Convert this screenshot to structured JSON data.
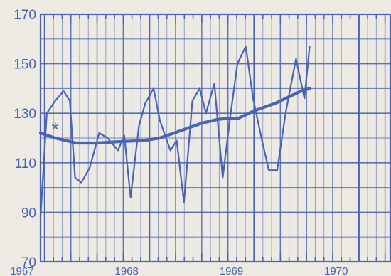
{
  "chart_data": {
    "type": "line",
    "title": "",
    "xlabel": "",
    "ylabel": "",
    "ylim": [
      70,
      170
    ],
    "yticks": [
      70,
      90,
      110,
      130,
      150,
      170
    ],
    "xlim": [
      1966.96,
      1970.3
    ],
    "xticks": [
      {
        "label": "1967",
        "x": 1967.0
      },
      {
        "label": "1968",
        "x": 1968.0
      },
      {
        "label": "1969",
        "x": 1969.0
      },
      {
        "label": "1970",
        "x": 1970.0
      }
    ],
    "grid": true,
    "color": "#4a63b3",
    "background": "#eceae3",
    "annotation": {
      "text": "*",
      "x": 1967.1,
      "y": 125
    },
    "series": [
      {
        "values": [
          [
            1966.96,
            88
          ],
          [
            1967.02,
            130
          ],
          [
            1967.1,
            135
          ],
          [
            1967.18,
            139
          ],
          [
            1967.24,
            135
          ],
          [
            1967.29,
            104
          ],
          [
            1967.35,
            102
          ],
          [
            1967.43,
            108
          ],
          [
            1967.52,
            122
          ],
          [
            1967.6,
            120
          ],
          [
            1967.7,
            115
          ],
          [
            1967.76,
            121
          ],
          [
            1967.82,
            96
          ],
          [
            1967.9,
            125
          ],
          [
            1967.96,
            134
          ],
          [
            1968.04,
            140
          ],
          [
            1968.1,
            127
          ],
          [
            1968.2,
            115
          ],
          [
            1968.26,
            119
          ],
          [
            1968.33,
            94
          ],
          [
            1968.41,
            135
          ],
          [
            1968.48,
            140
          ],
          [
            1968.54,
            130
          ],
          [
            1968.62,
            142
          ],
          [
            1968.7,
            104
          ],
          [
            1968.77,
            128
          ],
          [
            1968.84,
            150
          ],
          [
            1968.92,
            157
          ],
          [
            1968.99,
            136
          ],
          [
            1969.07,
            120
          ],
          [
            1969.14,
            107
          ],
          [
            1969.22,
            107
          ],
          [
            1969.3,
            130
          ],
          [
            1969.4,
            152
          ],
          [
            1969.48,
            136
          ],
          [
            1969.53,
            157
          ]
        ]
      },
      {
        "values": [
          [
            1966.96,
            122
          ],
          [
            1967.1,
            120
          ],
          [
            1967.3,
            118
          ],
          [
            1967.5,
            118
          ],
          [
            1967.7,
            118.5
          ],
          [
            1967.95,
            119
          ],
          [
            1968.1,
            120
          ],
          [
            1968.3,
            123
          ],
          [
            1968.5,
            126
          ],
          [
            1968.65,
            127.5
          ],
          [
            1968.75,
            128
          ],
          [
            1968.85,
            128
          ],
          [
            1969.0,
            131
          ],
          [
            1969.2,
            134
          ],
          [
            1969.35,
            137
          ],
          [
            1969.45,
            139
          ],
          [
            1969.53,
            140
          ]
        ]
      }
    ]
  }
}
